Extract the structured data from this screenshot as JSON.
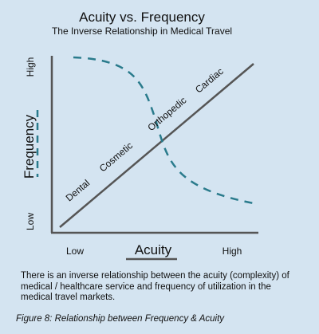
{
  "title": "Acuity vs. Frequency",
  "subtitle": "The Inverse Relationship in Medical Travel",
  "y_axis": {
    "label": "Frequency",
    "high": "High",
    "low": "Low"
  },
  "x_axis": {
    "label": "Acuity",
    "low": "Low",
    "high": "High"
  },
  "acuity_labels": [
    "Dental",
    "Cosmetic",
    "Orthopedic",
    "Cardiac"
  ],
  "colors": {
    "background": "#d4e4f1",
    "axis": "#555555",
    "acuity_line": "#555555",
    "frequency_curve": "#2a7b8c",
    "text": "#111111"
  },
  "caption": "There is an inverse relationship between the acuity (complexity) of medical / healthcare service and frequency of utilization in the medical travel markets.",
  "figure_caption": "Figure 8: Relationship between Frequency & Acuity"
}
